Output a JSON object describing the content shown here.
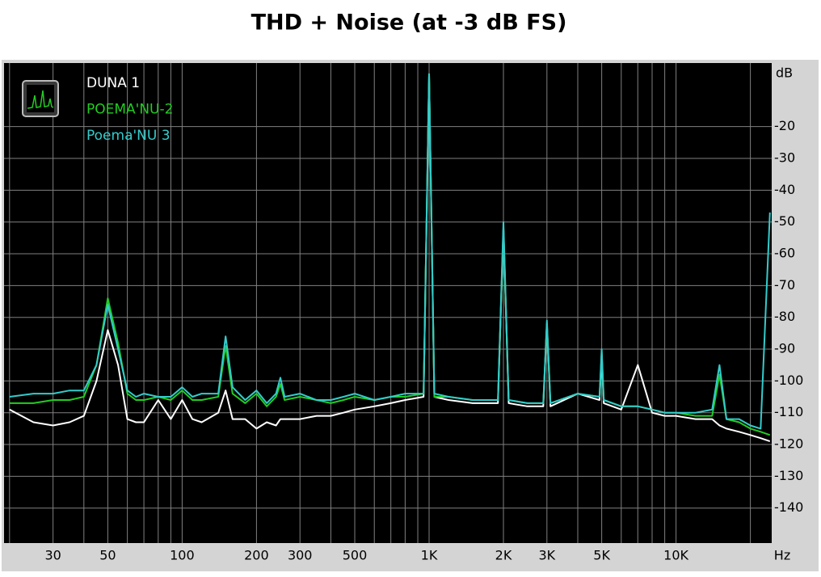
{
  "chart_data": {
    "type": "line",
    "title": "THD + Noise (at -3 dB FS)",
    "x_label": "Hz",
    "y_label": "dB",
    "xscale": "log",
    "legend": "upper left",
    "grid": true,
    "xlim": [
      19,
      24400
    ],
    "ylim": [
      -151,
      0
    ],
    "xticks": [
      30,
      50,
      100,
      200,
      300,
      500,
      {
        "value": 1000,
        "label": "1K"
      },
      {
        "value": 2000,
        "label": "2K"
      },
      {
        "value": 3000,
        "label": "3K"
      },
      {
        "value": 5000,
        "label": "5K"
      },
      {
        "value": 10000,
        "label": "10K"
      }
    ],
    "xgrid": [
      20,
      30,
      40,
      50,
      60,
      70,
      80,
      90,
      100,
      200,
      300,
      400,
      500,
      600,
      700,
      800,
      900,
      1000,
      2000,
      3000,
      4000,
      5000,
      6000,
      7000,
      8000,
      9000,
      10000,
      20000
    ],
    "yticks": [
      -20,
      -30,
      -40,
      -50,
      -60,
      -70,
      -80,
      -90,
      -100,
      -110,
      -120,
      -130,
      -140
    ],
    "x": [
      20,
      25,
      30,
      35,
      40,
      45,
      50,
      55,
      60,
      65,
      70,
      80,
      90,
      100,
      110,
      120,
      140,
      150,
      160,
      180,
      200,
      220,
      240,
      250,
      260,
      300,
      350,
      400,
      450,
      500,
      600,
      700,
      800,
      950,
      1000,
      1050,
      1200,
      1500,
      1900,
      2000,
      2100,
      2500,
      2900,
      3000,
      3100,
      4000,
      4900,
      5000,
      5100,
      6000,
      7000,
      8000,
      9000,
      10000,
      12000,
      14000,
      15000,
      16000,
      18000,
      20000,
      22000,
      24000
    ],
    "series": [
      {
        "name": "DUNA 1",
        "color": "#ffffff",
        "values": [
          -109,
          -113,
          -114,
          -113,
          -111,
          -100,
          -84,
          -95,
          -112,
          -113,
          -113,
          -106,
          -112,
          -106,
          -112,
          -113,
          -110,
          -103,
          -112,
          -112,
          -115,
          -113,
          -114,
          -112,
          -112,
          -112,
          -111,
          -111,
          -110,
          -109,
          -108,
          -107,
          -106,
          -105,
          -3.5,
          -105,
          -106,
          -107,
          -107,
          -52,
          -107,
          -108,
          -108,
          -82,
          -108,
          -104,
          -106,
          -92,
          -107,
          -109,
          -95,
          -110,
          -111,
          -111,
          -112,
          -112,
          -114,
          -115,
          -116,
          -117,
          -118,
          -119
        ]
      },
      {
        "name": "POEMA'NU-2",
        "color": "#22cc22",
        "values": [
          -107,
          -107,
          -106,
          -106,
          -105,
          -95,
          -74,
          -88,
          -104,
          -106,
          -106,
          -105,
          -106,
          -103,
          -106,
          -106,
          -105,
          -89,
          -104,
          -107,
          -104,
          -108,
          -105,
          -101,
          -106,
          -105,
          -106,
          -107,
          -106,
          -105,
          -106,
          -105,
          -105,
          -104,
          -3.5,
          -105,
          -105,
          -106,
          -106,
          -52,
          -106,
          -107,
          -107,
          -82,
          -107,
          -104,
          -105,
          -91,
          -106,
          -108,
          -108,
          -109,
          -110,
          -110,
          -111,
          -111,
          -98,
          -112,
          -113,
          -115,
          -116,
          -117
        ]
      },
      {
        "name": "Poema'NU 3",
        "color": "#33cccc",
        "values": [
          -105,
          -104,
          -104,
          -103,
          -103,
          -95,
          -76,
          -90,
          -103,
          -105,
          -104,
          -105,
          -105,
          -102,
          -105,
          -104,
          -104,
          -86,
          -102,
          -106,
          -103,
          -107,
          -104,
          -99,
          -105,
          -104,
          -106,
          -106,
          -105,
          -104,
          -106,
          -105,
          -104,
          -104,
          -3.5,
          -104,
          -105,
          -106,
          -106,
          -50,
          -106,
          -107,
          -107,
          -81,
          -107,
          -104,
          -105,
          -90,
          -106,
          -108,
          -108,
          -109,
          -110,
          -110,
          -110,
          -109,
          -95,
          -112,
          -112,
          -114,
          -115,
          -47
        ]
      }
    ]
  }
}
